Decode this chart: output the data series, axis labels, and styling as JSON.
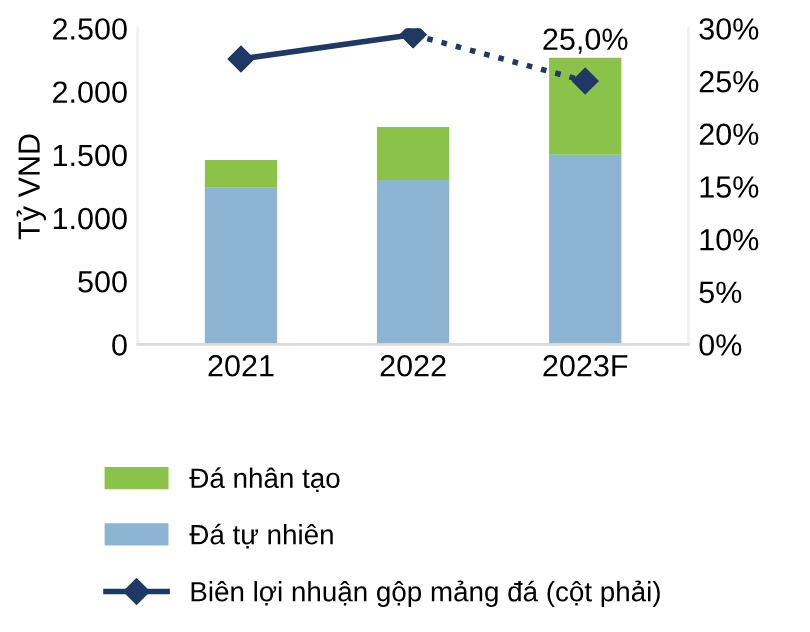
{
  "chart_data": {
    "type": "bar",
    "stacked": true,
    "ylabel": "Tỷ VND",
    "categories": [
      "2021",
      "2022",
      "2023F"
    ],
    "series": [
      {
        "name": "Đá tự nhiên",
        "color": "#8eb4d3",
        "values": [
          1240,
          1300,
          1500
        ]
      },
      {
        "name": "Đá nhân tạo",
        "color": "#8bc34a",
        "values": [
          220,
          420,
          800
        ]
      },
      {
        "name": "Biên lợi nhuận gộp mảng đá (cột phải)",
        "type": "line",
        "axis": "y2",
        "color": "#1f3864",
        "marker": "diamond",
        "line_style": "solid",
        "values": [
          27.1,
          29.4,
          null
        ]
      },
      {
        "type": "line",
        "axis": "y2",
        "color": "#1f3864",
        "marker": "diamond",
        "line_style": "dotted",
        "values": [
          null,
          29.4,
          25.0
        ],
        "value_labels": [
          null,
          null,
          "25,0%"
        ]
      }
    ],
    "ylim": [
      0,
      2500
    ],
    "yticks": [
      0,
      500,
      {
        "value": 1000,
        "label": "1.000"
      },
      {
        "value": 1500,
        "label": "1.500"
      },
      {
        "value": 2000,
        "label": "2.000"
      },
      {
        "value": 2500,
        "label": "2.500"
      }
    ],
    "y2lim": [
      0,
      30
    ],
    "y2ticks": [
      {
        "value": 0,
        "label": "0%"
      },
      {
        "value": 5,
        "label": "5%"
      },
      {
        "value": 10,
        "label": "10%"
      },
      {
        "value": 15,
        "label": "15%"
      },
      {
        "value": 20,
        "label": "20%"
      },
      {
        "value": 25,
        "label": "25%"
      },
      {
        "value": 30,
        "label": "30%"
      }
    ],
    "grid": false,
    "legend": "bottom"
  }
}
